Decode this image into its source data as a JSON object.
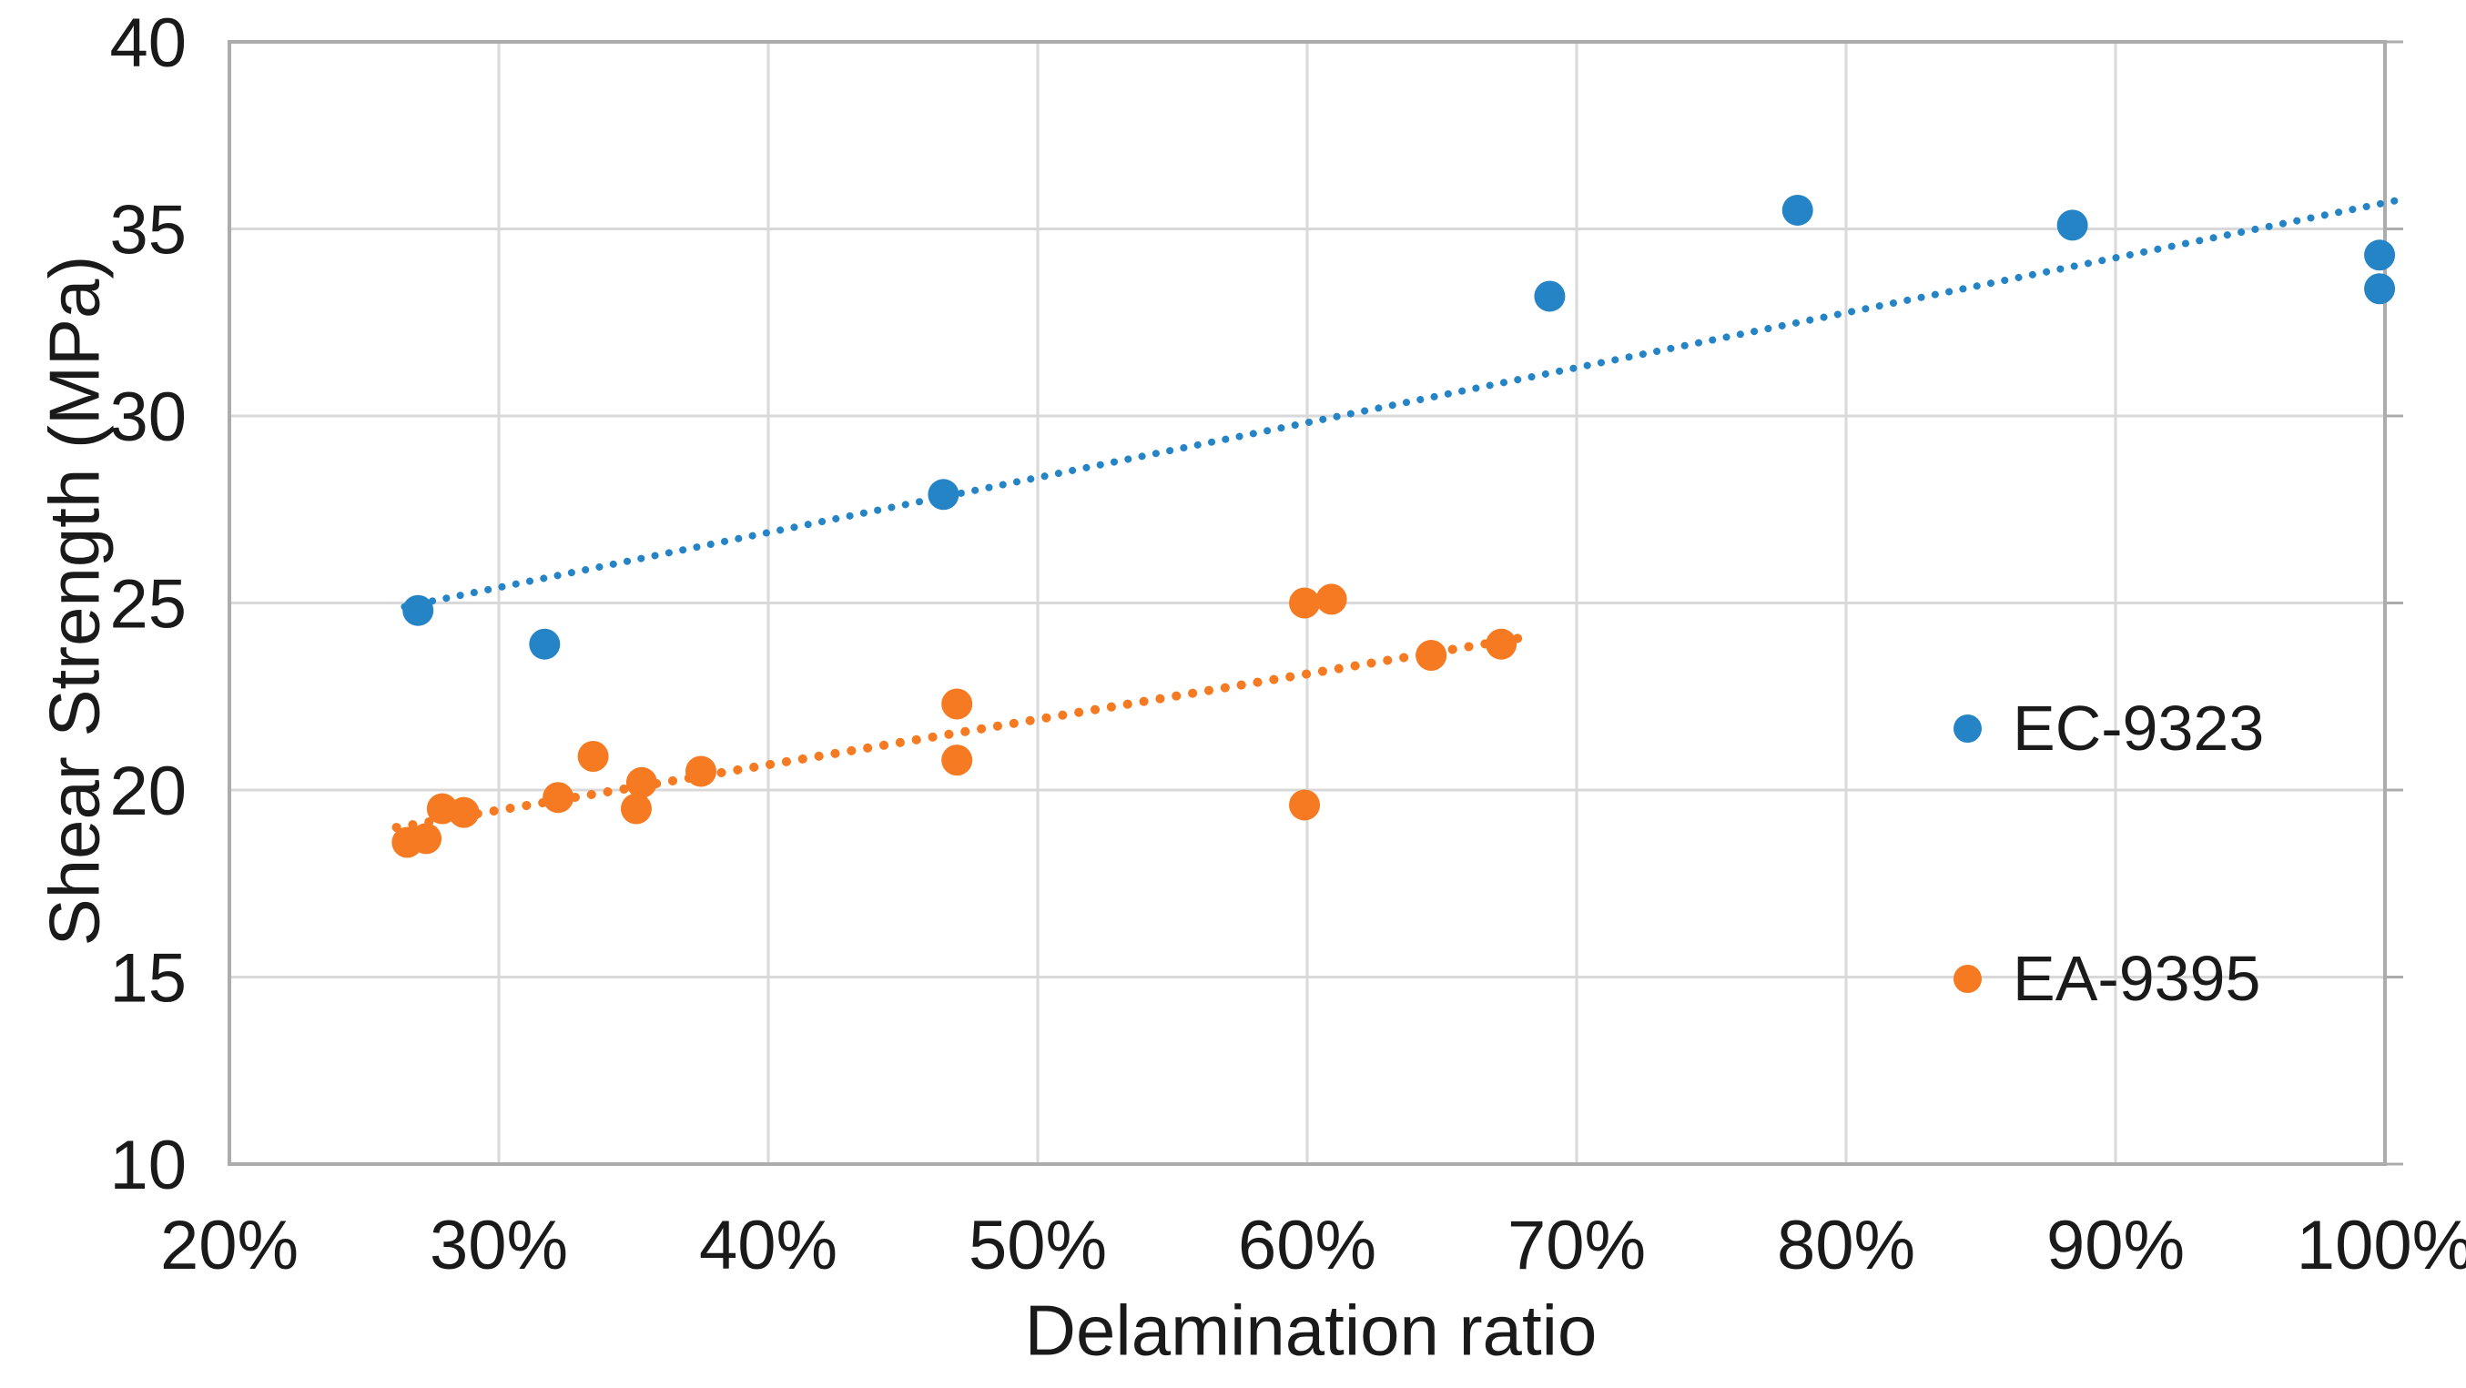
{
  "colors": {
    "series_blue": "#2484C6",
    "series_orange": "#F57A21",
    "gridline": "#D9D9D9",
    "axis_border": "#ACACAC",
    "text": "#1A1A1A",
    "background": "#FFFFFF"
  },
  "chart_data": {
    "type": "scatter",
    "title": "",
    "xlabel": "Delamination ratio",
    "ylabel": "Shear Strength (MPa)",
    "grid": true,
    "legend_position": "inside-right",
    "x_axis": {
      "min": 20,
      "max": 100,
      "step": 10,
      "unit": "%",
      "tick_labels": [
        "20%",
        "30%",
        "40%",
        "50%",
        "60%",
        "70%",
        "80%",
        "90%",
        "100%"
      ]
    },
    "y_axis": {
      "min": 10,
      "max": 40,
      "step": 5,
      "unit": "MPa",
      "tick_labels": [
        "10",
        "15",
        "20",
        "25",
        "30",
        "35",
        "40"
      ]
    },
    "series": [
      {
        "name": "EC-9323",
        "color": "#2484C6",
        "points": [
          {
            "x": 27.0,
            "y": 24.8
          },
          {
            "x": 31.7,
            "y": 23.9
          },
          {
            "x": 46.5,
            "y": 27.9
          },
          {
            "x": 69.0,
            "y": 33.2
          },
          {
            "x": 78.2,
            "y": 35.5
          },
          {
            "x": 88.4,
            "y": 35.1
          },
          {
            "x": 99.8,
            "y": 34.3
          },
          {
            "x": 99.8,
            "y": 33.4
          }
        ],
        "trendline": {
          "style": "dotted",
          "x1": 26.5,
          "y1": 24.9,
          "x2": 100.7,
          "y2": 35.8
        }
      },
      {
        "name": "EA-9395",
        "color": "#F57A21",
        "points": [
          {
            "x": 26.6,
            "y": 18.6
          },
          {
            "x": 27.3,
            "y": 18.7
          },
          {
            "x": 27.9,
            "y": 19.5
          },
          {
            "x": 28.7,
            "y": 19.4
          },
          {
            "x": 32.2,
            "y": 19.8
          },
          {
            "x": 33.5,
            "y": 20.9
          },
          {
            "x": 35.1,
            "y": 19.5
          },
          {
            "x": 35.3,
            "y": 20.2
          },
          {
            "x": 37.5,
            "y": 20.5
          },
          {
            "x": 47.0,
            "y": 22.3
          },
          {
            "x": 47.0,
            "y": 20.8
          },
          {
            "x": 59.9,
            "y": 25.0
          },
          {
            "x": 60.9,
            "y": 25.1
          },
          {
            "x": 59.9,
            "y": 19.6
          },
          {
            "x": 64.6,
            "y": 23.6
          },
          {
            "x": 67.2,
            "y": 23.9
          }
        ],
        "trendline": {
          "style": "dotted",
          "x1": 26.2,
          "y1": 19.0,
          "x2": 68.2,
          "y2": 24.1
        }
      }
    ]
  },
  "legend": {
    "items": [
      {
        "label": "EC-9323"
      },
      {
        "label": "EA-9395"
      }
    ]
  }
}
